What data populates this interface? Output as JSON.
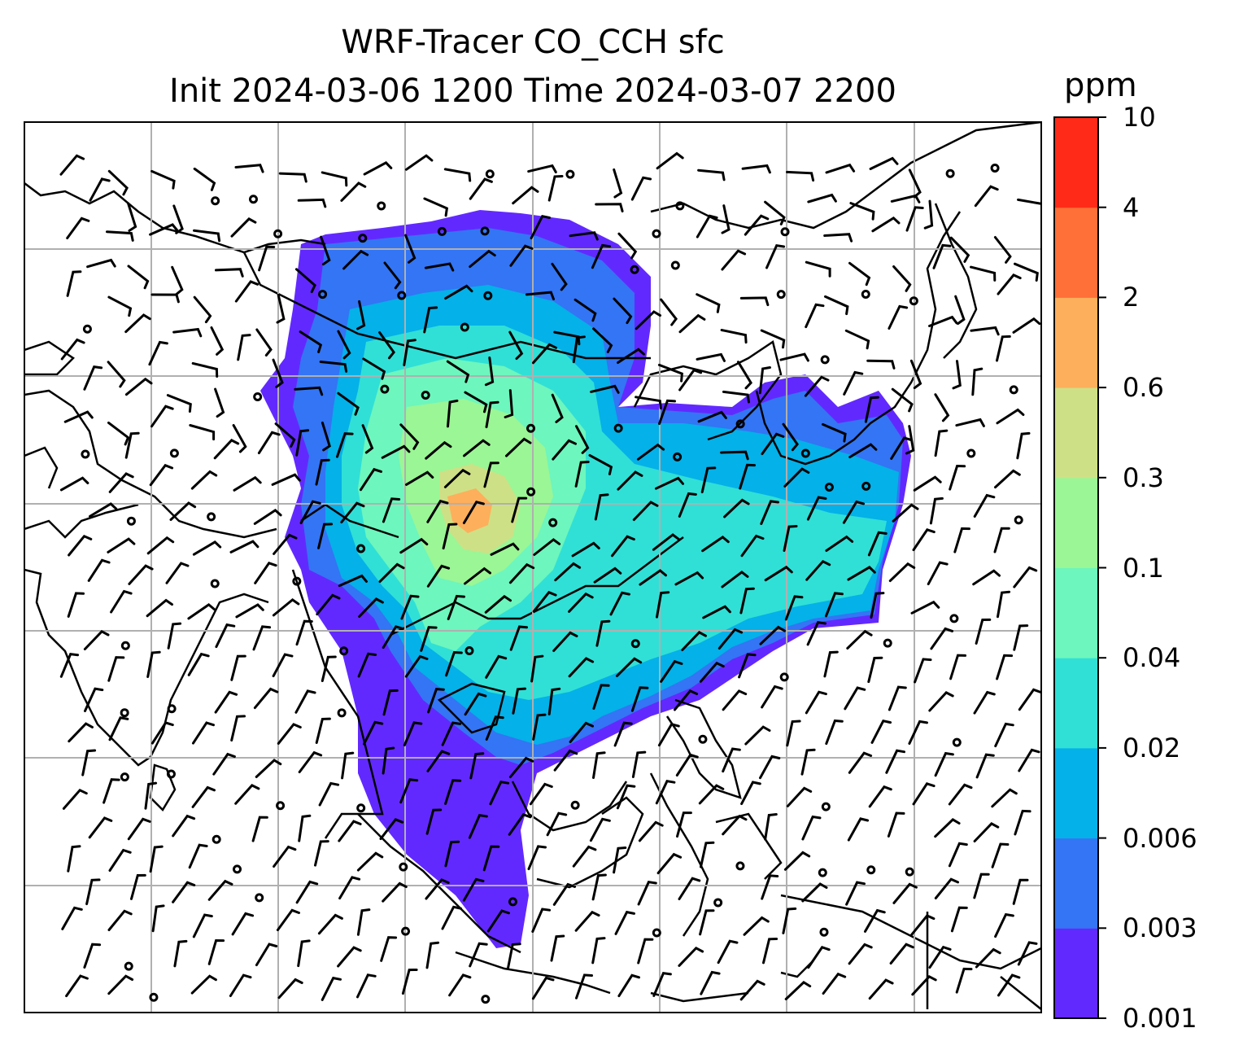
{
  "title_line1": "WRF-Tracer CO_CCH sfc",
  "title_line2": "Init 2024-03-06 1200 Time 2024-03-07 2200",
  "colorbar": {
    "unit": "ppm",
    "levels": [
      "0.001",
      "0.003",
      "0.006",
      "0.02",
      "0.04",
      "0.1",
      "0.3",
      "0.6",
      "2",
      "4",
      "10"
    ],
    "colors": [
      "#6229ff",
      "#3375f4",
      "#04b1e8",
      "#30e0d6",
      "#6df6bd",
      "#9bf695",
      "#cee086",
      "#fdaf5c",
      "#ff6f38",
      "#ff2a17"
    ]
  },
  "map": {
    "type": "filled contour map with wind barbs",
    "region": "South, Southeast and East Asia",
    "gridlines": true,
    "coastlines": true
  }
}
